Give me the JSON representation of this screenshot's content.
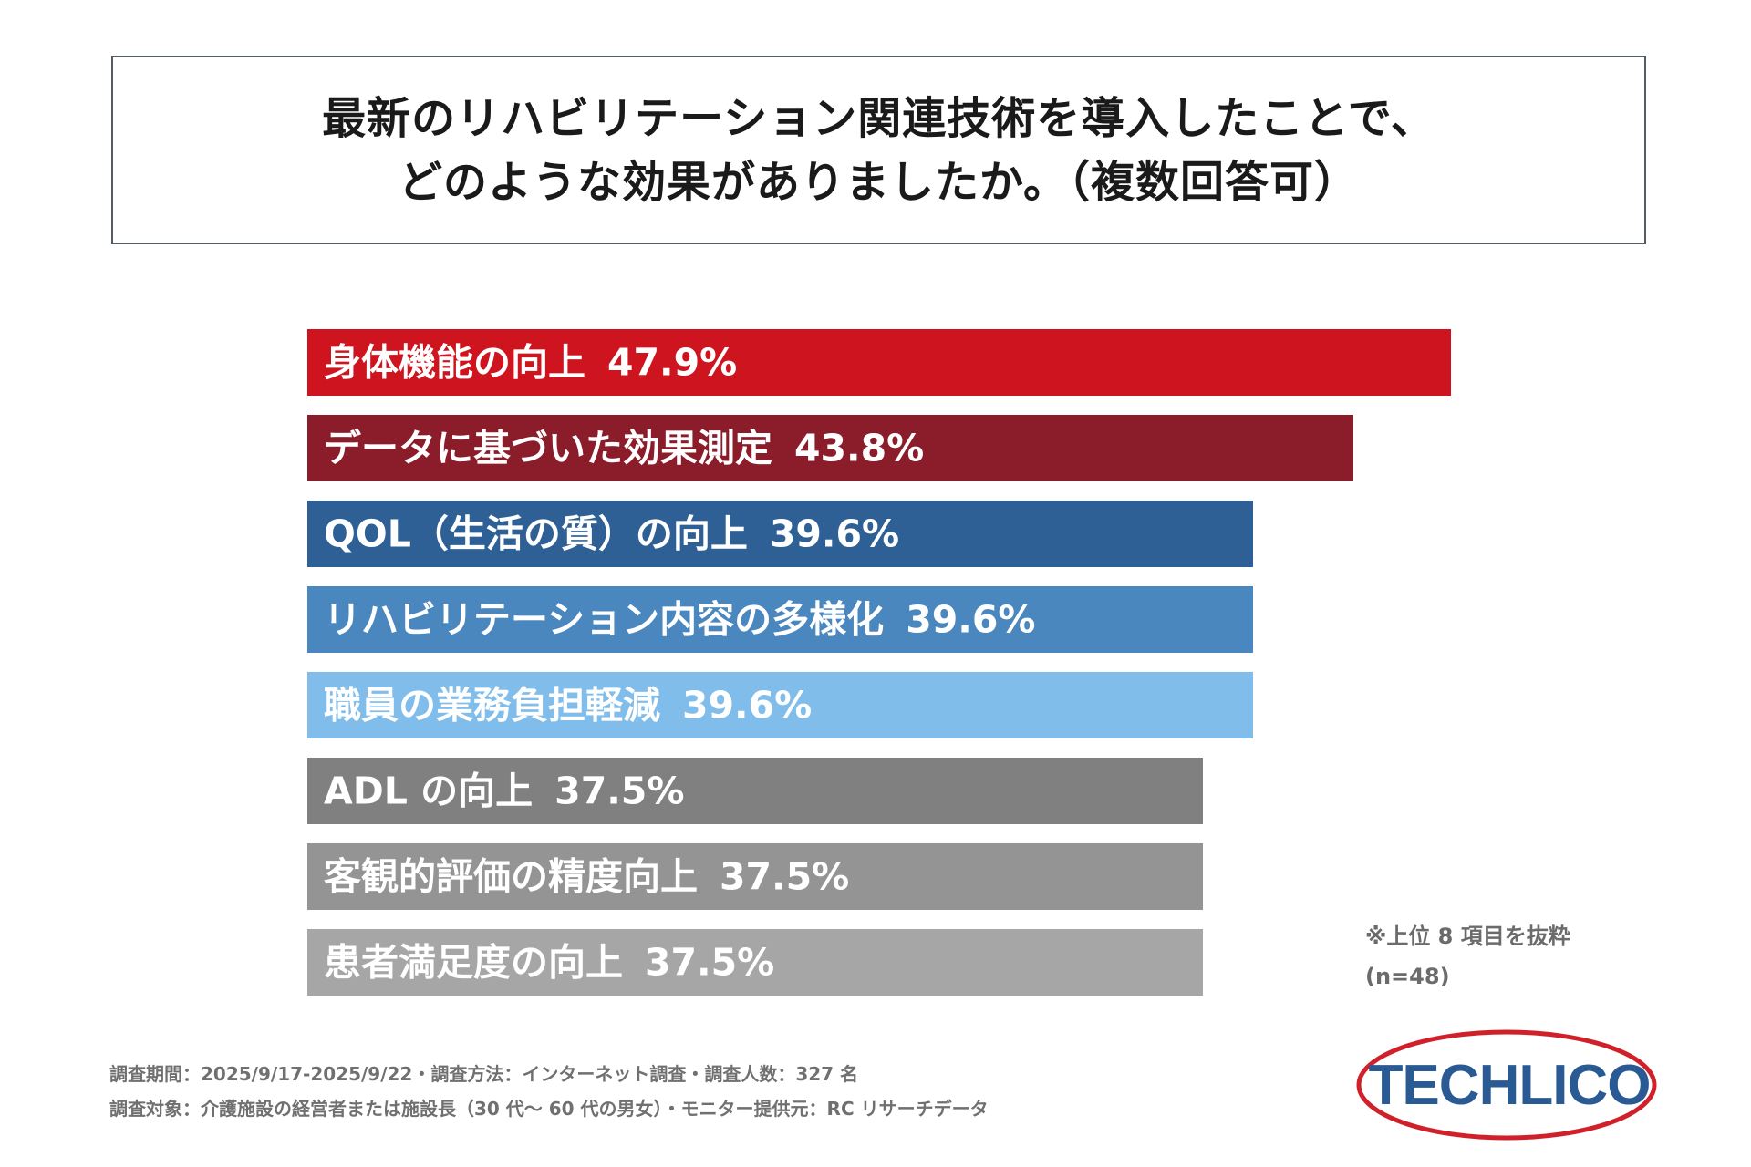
{
  "title": {
    "line1": "最新のリハビリテーション関連技術を導入したことで、",
    "line2": "どのような効果がありましたか。（複数回答可）"
  },
  "chart_data": {
    "type": "bar",
    "orientation": "horizontal",
    "unit": "%",
    "xlim": [
      0,
      50
    ],
    "categories": [
      "身体機能の向上",
      "データに基づいた効果測定",
      "QOL（生活の質）の向上",
      "リハビリテーション内容の多様化",
      "職員の業務負担軽減",
      "ADL の向上",
      "客観的評価の精度向上",
      "患者満足度の向上"
    ],
    "values": [
      47.9,
      43.8,
      39.6,
      39.6,
      39.6,
      37.5,
      37.5,
      37.5
    ],
    "value_labels": [
      "47.9%",
      "43.8%",
      "39.6%",
      "39.6%",
      "39.6%",
      "37.5%",
      "37.5%",
      "37.5%"
    ],
    "colors": [
      "#cd141f",
      "#8b1d2a",
      "#2e6096",
      "#4a87be",
      "#80bdea",
      "#808080",
      "#949494",
      "#a6a6a6"
    ]
  },
  "notes": {
    "top8": "※上位 8 項目を抜粋",
    "n": "(n=48)"
  },
  "footer": {
    "line1": "調査期間：2025/9/17-2025/9/22・調査方法：インターネット調査・調査人数：327 名",
    "line2": "調査対象：介護施設の経営者または施設長（30 代～ 60 代の男女）・モニター提供元：RC リサーチデータ"
  },
  "logo": {
    "text": "TECHLICO",
    "text_color": "#2a5a94",
    "ring_color": "#d0202a"
  }
}
